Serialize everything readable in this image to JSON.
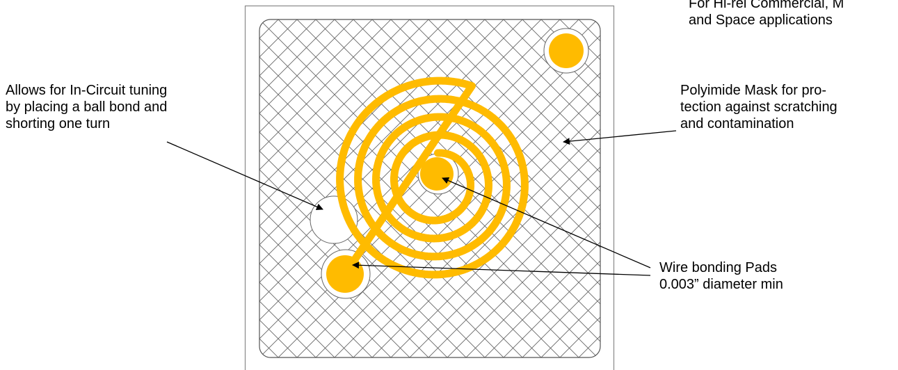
{
  "colors": {
    "gold": "#ffbb00",
    "outline": "#666666",
    "mesh": "#666666",
    "arrow": "#000000",
    "background": "#ffffff"
  },
  "annotations": {
    "top_right": {
      "line1": "For Hi-rel Commercial, M",
      "line2": "and Space applications"
    },
    "tuning": {
      "line1": "Allows for In-Circuit tuning",
      "line2": "by placing a ball bond and",
      "line3": "shorting one turn"
    },
    "mask": {
      "line1": "Polyimide Mask for pro-",
      "line2": "tection against scratching",
      "line3": "and contamination"
    },
    "pads": {
      "line1": "Wire bonding Pads",
      "line2": "0.003” diameter min"
    }
  }
}
